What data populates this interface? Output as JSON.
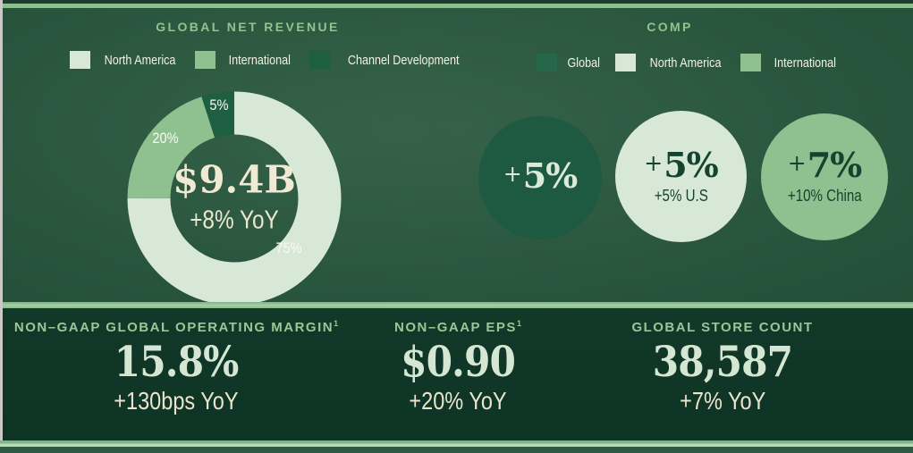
{
  "colors": {
    "accent_band": "#8dbf8d",
    "mint": "#d7e8d6",
    "medium_green": "#8fc08f",
    "dark_segment_green": "#1f5f41",
    "legend_global_swatch": "#256748",
    "circle_global_bg": "#1e5a41",
    "circle_global_text": "#dcebd9",
    "circle_dark_text": "#16432f",
    "upper_background": "#234f38",
    "lower_background": "#113728"
  },
  "revenue": {
    "title": "GLOBAL NET REVENUE",
    "legend": [
      {
        "label": "North America",
        "color": "#d7e8d6"
      },
      {
        "label": "International",
        "color": "#8fc08f"
      },
      {
        "label": "Channel Development",
        "color": "#1f5f41"
      }
    ],
    "donut": {
      "value": "$9.4B",
      "delta": "+8% YoY",
      "segments": [
        {
          "name": "North America",
          "pct": 75,
          "pct_label": "75%",
          "color": "#d7e8d6"
        },
        {
          "name": "International",
          "pct": 20,
          "pct_label": "20%",
          "color": "#8fc08f"
        },
        {
          "name": "Channel Development",
          "pct": 5,
          "pct_label": "5%",
          "color": "#1f5f41"
        }
      ]
    }
  },
  "comp": {
    "title": "COMP",
    "legend": [
      {
        "label": "Global",
        "color": "#256748"
      },
      {
        "label": "North America",
        "color": "#d7e8d6"
      },
      {
        "label": "International",
        "color": "#8fc08f"
      }
    ],
    "circles": [
      {
        "name": "Global",
        "plus": "+",
        "value": "5%",
        "sub": "",
        "bg": "#1e5a41",
        "fg": "#dcebd9"
      },
      {
        "name": "North America",
        "plus": "+",
        "value": "5%",
        "sub": "+5% U.S",
        "bg": "#d7e8d6",
        "fg": "#16432f"
      },
      {
        "name": "International",
        "plus": "+",
        "value": "7%",
        "sub": "+10% China",
        "bg": "#8fc08f",
        "fg": "#16432f"
      }
    ]
  },
  "kpis": [
    {
      "title": "NON–GAAP GLOBAL OPERATING MARGIN",
      "sup": "1",
      "value": "15.8%",
      "delta": "+130bps YoY"
    },
    {
      "title": "NON–GAAP EPS",
      "sup": "1",
      "value": "$0.90",
      "delta": "+20% YoY"
    },
    {
      "title": "GLOBAL STORE COUNT",
      "sup": "",
      "value": "38,587",
      "delta": "+7% YoY"
    }
  ],
  "chart_data": [
    {
      "type": "pie",
      "variant": "donut",
      "title": "GLOBAL NET REVENUE",
      "categories": [
        "North America",
        "International",
        "Channel Development"
      ],
      "values": [
        75,
        20,
        5
      ],
      "unit": "percent",
      "center_label": "$9.4B",
      "center_sublabel": "+8% YoY",
      "legend_position": "top",
      "start_angle_deg": 0,
      "direction": "clockwise"
    },
    {
      "type": "table",
      "title": "COMP",
      "categories": [
        "Global",
        "North America",
        "International"
      ],
      "values": [
        5,
        5,
        7
      ],
      "annotations": [
        "+5%",
        "+5% U.S",
        "+10% China"
      ],
      "unit": "percent growth"
    },
    {
      "type": "table",
      "title": "Bottom KPIs",
      "categories": [
        "NON–GAAP GLOBAL OPERATING MARGIN¹",
        "NON–GAAP EPS¹",
        "GLOBAL STORE COUNT"
      ],
      "values": [
        "15.8%",
        "$0.90",
        "38,587"
      ],
      "annotations": [
        "+130bps YoY",
        "+20% YoY",
        "+7% YoY"
      ]
    }
  ]
}
